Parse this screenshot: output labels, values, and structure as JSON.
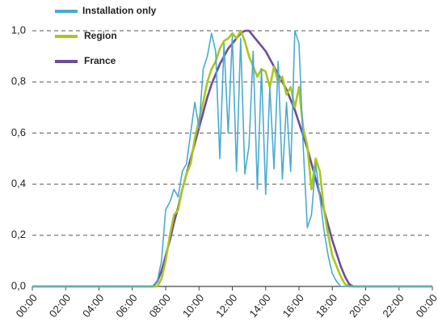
{
  "chart_data": {
    "type": "line",
    "x": [
      0,
      6,
      7,
      7.25,
      7.5,
      7.75,
      8,
      8.25,
      8.5,
      8.75,
      9,
      9.25,
      9.5,
      9.75,
      10,
      10.25,
      10.5,
      10.75,
      11,
      11.25,
      11.5,
      11.75,
      12,
      12.25,
      12.5,
      12.75,
      13,
      13.25,
      13.5,
      13.75,
      14,
      14.25,
      14.5,
      14.75,
      15,
      15.25,
      15.5,
      15.75,
      16,
      16.25,
      16.5,
      16.75,
      17,
      17.25,
      17.5,
      17.75,
      18,
      18.25,
      18.5,
      18.75,
      19,
      19.25,
      19.5,
      20,
      24
    ],
    "series": [
      {
        "name": "Installation only",
        "color": "#4aabcf",
        "values": [
          0,
          0,
          0,
          0,
          0.02,
          0.1,
          0.3,
          0.33,
          0.38,
          0.35,
          0.45,
          0.48,
          0.6,
          0.72,
          0.62,
          0.85,
          0.9,
          0.99,
          0.92,
          0.5,
          0.95,
          0.6,
          0.98,
          0.45,
          0.97,
          0.44,
          0.55,
          0.92,
          0.38,
          0.85,
          0.36,
          0.78,
          0.46,
          0.88,
          0.42,
          0.72,
          0.45,
          1.0,
          0.95,
          0.55,
          0.23,
          0.28,
          0.48,
          0.35,
          0.22,
          0.12,
          0.05,
          0.02,
          0,
          0,
          0,
          0,
          0,
          0,
          0
        ]
      },
      {
        "name": "Region",
        "color": "#a9c71f",
        "values": [
          0,
          0,
          0,
          0,
          0,
          0.03,
          0.1,
          0.2,
          0.28,
          0.3,
          0.38,
          0.44,
          0.48,
          0.58,
          0.65,
          0.72,
          0.8,
          0.85,
          0.88,
          0.93,
          0.96,
          0.97,
          0.99,
          0.97,
          1.0,
          0.96,
          0.9,
          0.86,
          0.82,
          0.85,
          0.84,
          0.78,
          0.86,
          0.8,
          0.82,
          0.75,
          0.78,
          0.7,
          0.78,
          0.62,
          0.55,
          0.38,
          0.5,
          0.45,
          0.3,
          0.2,
          0.12,
          0.08,
          0.04,
          0.01,
          0,
          0,
          0,
          0,
          0
        ]
      },
      {
        "name": "France",
        "color": "#6f4c9b",
        "values": [
          0,
          0,
          0,
          0,
          0.02,
          0.06,
          0.12,
          0.18,
          0.25,
          0.31,
          0.38,
          0.44,
          0.5,
          0.56,
          0.62,
          0.68,
          0.74,
          0.79,
          0.83,
          0.87,
          0.9,
          0.93,
          0.95,
          0.97,
          0.99,
          1.0,
          1.0,
          0.98,
          0.96,
          0.94,
          0.92,
          0.89,
          0.86,
          0.83,
          0.8,
          0.77,
          0.73,
          0.69,
          0.64,
          0.59,
          0.54,
          0.48,
          0.42,
          0.36,
          0.3,
          0.24,
          0.18,
          0.13,
          0.08,
          0.04,
          0.01,
          0,
          0,
          0,
          0
        ]
      }
    ],
    "xlim": [
      0,
      24
    ],
    "xticks": [
      {
        "value": 0,
        "label": "00:00"
      },
      {
        "value": 2,
        "label": "02:00"
      },
      {
        "value": 4,
        "label": "04:00"
      },
      {
        "value": 6,
        "label": "06:00"
      },
      {
        "value": 8,
        "label": "08:00"
      },
      {
        "value": 10,
        "label": "10:00"
      },
      {
        "value": 12,
        "label": "12:00"
      },
      {
        "value": 14,
        "label": "14:00"
      },
      {
        "value": 16,
        "label": "16:00"
      },
      {
        "value": 18,
        "label": "18:00"
      },
      {
        "value": 20,
        "label": "20:00"
      },
      {
        "value": 22,
        "label": "22:00"
      },
      {
        "value": 24,
        "label": "00:00"
      }
    ],
    "ylim": [
      0,
      1
    ],
    "yticks": [
      {
        "value": 0,
        "label": "0,0"
      },
      {
        "value": 0.2,
        "label": "0,2"
      },
      {
        "value": 0.4,
        "label": "0,4"
      },
      {
        "value": 0.6,
        "label": "0,6"
      },
      {
        "value": 0.8,
        "label": "0,8"
      },
      {
        "value": 1,
        "label": "1,0"
      }
    ],
    "grid": true,
    "legend": "top-left"
  }
}
